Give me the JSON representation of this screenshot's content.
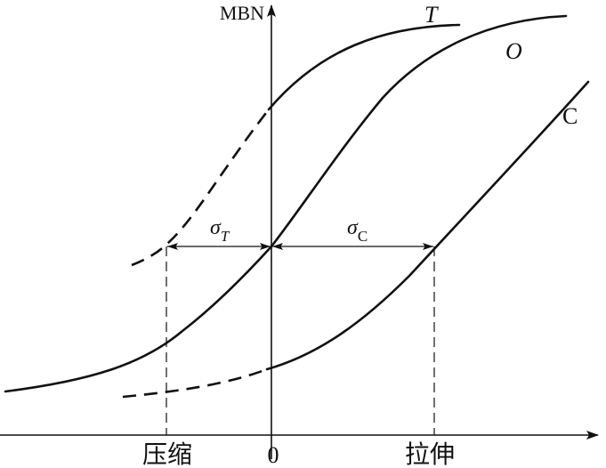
{
  "axes": {
    "y_label": "MBN",
    "x_origin_label": "0",
    "x_left_label": "压缩",
    "x_right_label": "拉伸"
  },
  "curves": [
    {
      "id": "T",
      "label": "T",
      "dashed_segment": "lower-left",
      "relative_position": "shifted toward compression"
    },
    {
      "id": "O",
      "label": "O",
      "dashed_segment": "none",
      "relative_position": "reference, passes through origin"
    },
    {
      "id": "C",
      "label": "C",
      "dashed_segment": "lower-left",
      "relative_position": "shifted toward tension"
    }
  ],
  "dimensions": [
    {
      "id": "sigma_T",
      "symbol": "σ",
      "subscript": "T",
      "between": [
        "T",
        "O"
      ]
    },
    {
      "id": "sigma_C",
      "symbol": "σ",
      "subscript": "C",
      "between": [
        "O",
        "C"
      ]
    }
  ]
}
